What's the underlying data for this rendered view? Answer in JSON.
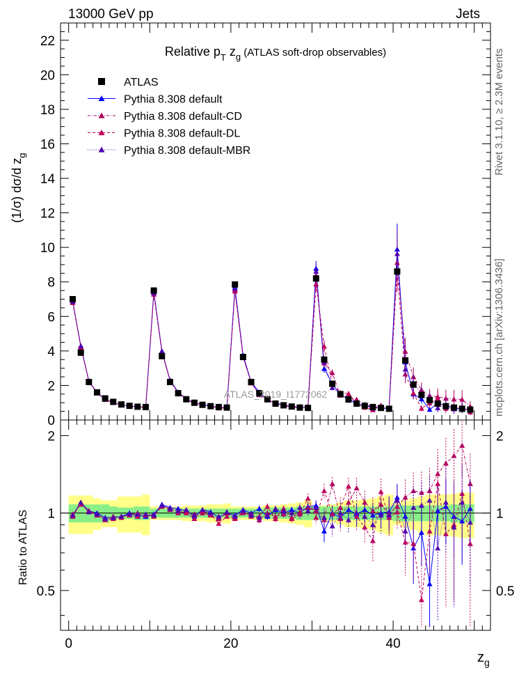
{
  "header": {
    "left": "13000 GeV pp",
    "right": "Jets",
    "side_top": "Rivet 3.1.10, ≥ 2.3M events",
    "side_bottom": "mcplots.cern.ch [arXiv:1306.3436]",
    "watermark": "ATLAS_2019_I1772062"
  },
  "chart_data": {
    "type": "line",
    "title": "Relative p_T z_g (ATLAS soft-drop observables)",
    "xlabel": "z_g",
    "ylabel": "(1/σ) dσ/d z_g",
    "ratio_ylabel": "Ratio to ATLAS",
    "xlim": [
      -1,
      52
    ],
    "ylim": [
      0,
      23
    ],
    "ratio_ylim": [
      0.35,
      2.3
    ],
    "xticks": [
      0,
      20,
      40
    ],
    "yticks": [
      0,
      2,
      4,
      6,
      8,
      10,
      12,
      14,
      16,
      18,
      20,
      22
    ],
    "ratio_yticks": [
      0.5,
      1,
      2
    ],
    "legend_position": "top-left",
    "x": [
      0.5,
      1.5,
      2.5,
      3.5,
      4.5,
      5.5,
      6.5,
      7.5,
      8.5,
      9.5,
      10.5,
      11.5,
      12.5,
      13.5,
      14.5,
      15.5,
      16.5,
      17.5,
      18.5,
      19.5,
      20.5,
      21.5,
      22.5,
      23.5,
      24.5,
      25.5,
      26.5,
      27.5,
      28.5,
      29.5,
      30.5,
      31.5,
      32.5,
      33.5,
      34.5,
      35.5,
      36.5,
      37.5,
      38.5,
      39.5,
      40.5,
      41.5,
      42.5,
      43.5,
      44.5,
      45.5,
      46.5,
      47.5,
      48.5,
      49.5
    ],
    "series": [
      {
        "name": "ATLAS",
        "color": "#000000",
        "values": [
          7.0,
          3.9,
          2.2,
          1.6,
          1.25,
          1.05,
          0.9,
          0.82,
          0.77,
          0.75,
          7.5,
          3.7,
          2.2,
          1.55,
          1.2,
          1.0,
          0.88,
          0.8,
          0.75,
          0.72,
          7.85,
          3.65,
          2.2,
          1.55,
          1.2,
          0.95,
          0.85,
          0.78,
          0.72,
          0.7,
          8.2,
          3.5,
          2.1,
          1.5,
          1.2,
          0.95,
          0.82,
          0.75,
          0.7,
          0.65,
          8.6,
          3.45,
          2.05,
          1.45,
          1.15,
          0.95,
          0.8,
          0.72,
          0.65,
          0.6
        ],
        "band_outer": [
          0.17,
          0.17,
          0.17,
          0.14,
          0.12,
          0.12,
          0.16,
          0.16,
          0.16,
          0.18,
          0.06,
          0.06,
          0.06,
          0.06,
          0.07,
          0.07,
          0.07,
          0.08,
          0.08,
          0.09,
          0.06,
          0.06,
          0.06,
          0.06,
          0.07,
          0.07,
          0.08,
          0.09,
          0.1,
          0.12,
          0.06,
          0.07,
          0.08,
          0.1,
          0.12,
          0.12,
          0.13,
          0.14,
          0.16,
          0.18,
          0.1,
          0.12,
          0.14,
          0.16,
          0.18,
          0.18,
          0.18,
          0.19,
          0.2,
          0.2
        ],
        "band_inner": [
          0.08,
          0.08,
          0.08,
          0.08,
          0.08,
          0.06,
          0.05,
          0.05,
          0.06,
          0.06,
          0.04,
          0.04,
          0.04,
          0.04,
          0.04,
          0.04,
          0.04,
          0.04,
          0.04,
          0.04,
          0.04,
          0.04,
          0.04,
          0.04,
          0.05,
          0.05,
          0.05,
          0.05,
          0.06,
          0.06,
          0.06,
          0.06,
          0.06,
          0.06,
          0.06,
          0.06,
          0.06,
          0.06,
          0.06,
          0.06,
          0.07,
          0.07,
          0.07,
          0.07,
          0.07,
          0.07,
          0.07,
          0.08,
          0.08,
          0.08
        ]
      },
      {
        "name": "Pythia 8.308 default",
        "color": "#0000ff",
        "dash": "",
        "ratio": [
          0.98,
          1.1,
          1.02,
          1.0,
          0.96,
          0.96,
          0.97,
          1.0,
          0.98,
          0.97,
          0.99,
          1.08,
          1.05,
          1.04,
          1.02,
          0.97,
          1.03,
          1.01,
          0.96,
          1.0,
          0.98,
          1.03,
          1.0,
          1.04,
          0.97,
          1.03,
          1.0,
          1.03,
          1.0,
          1.06,
          1.07,
          0.85,
          1.0,
          0.96,
          1.03,
          0.99,
          1.03,
          0.98,
          1.0,
          1.01,
          1.15,
          0.97,
          0.73,
          0.84,
          0.53,
          1.02,
          1.06,
          0.97,
          0.93,
          1.04
        ],
        "err": [
          0.02,
          0.02,
          0.02,
          0.02,
          0.02,
          0.02,
          0.02,
          0.02,
          0.02,
          0.02,
          0.02,
          0.02,
          0.02,
          0.02,
          0.02,
          0.02,
          0.02,
          0.02,
          0.02,
          0.02,
          0.02,
          0.02,
          0.02,
          0.03,
          0.03,
          0.03,
          0.03,
          0.03,
          0.04,
          0.05,
          0.05,
          0.08,
          0.07,
          0.08,
          0.1,
          0.1,
          0.11,
          0.12,
          0.13,
          0.15,
          0.15,
          0.18,
          0.2,
          0.22,
          0.25,
          0.3,
          0.3,
          0.3,
          0.3,
          0.3
        ]
      },
      {
        "name": "Pythia 8.308 default-CD",
        "color": "#b00060",
        "dash": "4,2,1,2",
        "ratio": [
          0.99,
          1.08,
          1.01,
          0.98,
          0.95,
          0.97,
          0.96,
          0.99,
          1.0,
          0.98,
          0.98,
          1.07,
          1.03,
          1.0,
          1.01,
          0.99,
          1.0,
          0.98,
          0.95,
          1.0,
          0.96,
          1.0,
          0.99,
          0.94,
          1.0,
          0.97,
          0.99,
          0.96,
          1.01,
          1.05,
          1.02,
          0.94,
          1.3,
          0.95,
          1.1,
          1.25,
          1.1,
          1.02,
          1.08,
          0.99,
          1.06,
          1.15,
          1.22,
          1.2,
          1.22,
          1.42,
          1.56,
          1.67,
          1.83,
          1.3
        ],
        "err": [
          0.02,
          0.02,
          0.02,
          0.02,
          0.02,
          0.02,
          0.02,
          0.02,
          0.02,
          0.02,
          0.02,
          0.02,
          0.02,
          0.02,
          0.02,
          0.02,
          0.02,
          0.02,
          0.02,
          0.02,
          0.02,
          0.02,
          0.02,
          0.03,
          0.03,
          0.03,
          0.03,
          0.03,
          0.04,
          0.05,
          0.05,
          0.08,
          0.08,
          0.1,
          0.1,
          0.12,
          0.12,
          0.13,
          0.15,
          0.15,
          0.15,
          0.2,
          0.22,
          0.25,
          0.28,
          0.35,
          0.4,
          0.45,
          0.45,
          0.4
        ]
      },
      {
        "name": "Pythia 8.308 default-DL",
        "color": "#c0005a",
        "dash": "4,3",
        "ratio": [
          0.97,
          1.09,
          1.02,
          0.99,
          0.94,
          0.95,
          0.97,
          0.98,
          0.97,
          0.98,
          0.97,
          1.06,
          1.04,
          1.02,
          1.0,
          0.95,
          1.02,
          0.99,
          0.91,
          0.97,
          0.95,
          1.01,
          0.97,
          0.97,
          1.06,
          0.95,
          1.04,
          0.95,
          0.99,
          1.14,
          0.96,
          1.22,
          0.99,
          1.05,
          1.27,
          0.97,
          0.88,
          0.78,
          1.21,
          0.96,
          1.01,
          0.77,
          0.76,
          0.46,
          0.85,
          1.3,
          0.83,
          0.9,
          1.19,
          0.76
        ],
        "err": [
          0.02,
          0.02,
          0.02,
          0.02,
          0.02,
          0.02,
          0.02,
          0.02,
          0.02,
          0.02,
          0.02,
          0.02,
          0.02,
          0.02,
          0.02,
          0.02,
          0.02,
          0.02,
          0.02,
          0.02,
          0.02,
          0.02,
          0.02,
          0.03,
          0.03,
          0.03,
          0.03,
          0.03,
          0.04,
          0.05,
          0.05,
          0.08,
          0.08,
          0.1,
          0.1,
          0.12,
          0.12,
          0.13,
          0.15,
          0.15,
          0.15,
          0.2,
          0.22,
          0.25,
          0.28,
          0.35,
          0.4,
          0.45,
          0.45,
          0.4
        ]
      },
      {
        "name": "Pythia 8.308 default-MBR",
        "color": "#5000b0",
        "dash": "1,2",
        "ratio": [
          0.98,
          1.1,
          1.01,
          0.99,
          0.95,
          0.96,
          0.97,
          0.99,
          0.99,
          0.99,
          0.98,
          1.07,
          1.04,
          1.02,
          1.03,
          0.98,
          1.03,
          1.0,
          0.97,
          1.01,
          0.97,
          1.02,
          0.98,
          0.96,
          0.98,
          1.04,
          1.02,
          1.0,
          1.05,
          1.02,
          1.05,
          0.96,
          0.89,
          1.0,
          0.94,
          1.0,
          0.97,
          0.9,
          0.98,
          0.98,
          1.12,
          0.85,
          1.05,
          1.07,
          1.12,
          0.73,
          1.1,
          0.88,
          1.1,
          0.92
        ],
        "err": [
          0.02,
          0.02,
          0.02,
          0.02,
          0.02,
          0.02,
          0.02,
          0.02,
          0.02,
          0.02,
          0.02,
          0.02,
          0.02,
          0.02,
          0.02,
          0.02,
          0.02,
          0.02,
          0.02,
          0.02,
          0.02,
          0.02,
          0.02,
          0.03,
          0.03,
          0.03,
          0.03,
          0.03,
          0.04,
          0.05,
          0.05,
          0.08,
          0.08,
          0.1,
          0.1,
          0.12,
          0.12,
          0.13,
          0.15,
          0.15,
          0.15,
          0.2,
          0.22,
          0.25,
          0.28,
          0.35,
          0.4,
          0.45,
          0.45,
          0.4
        ]
      }
    ]
  }
}
